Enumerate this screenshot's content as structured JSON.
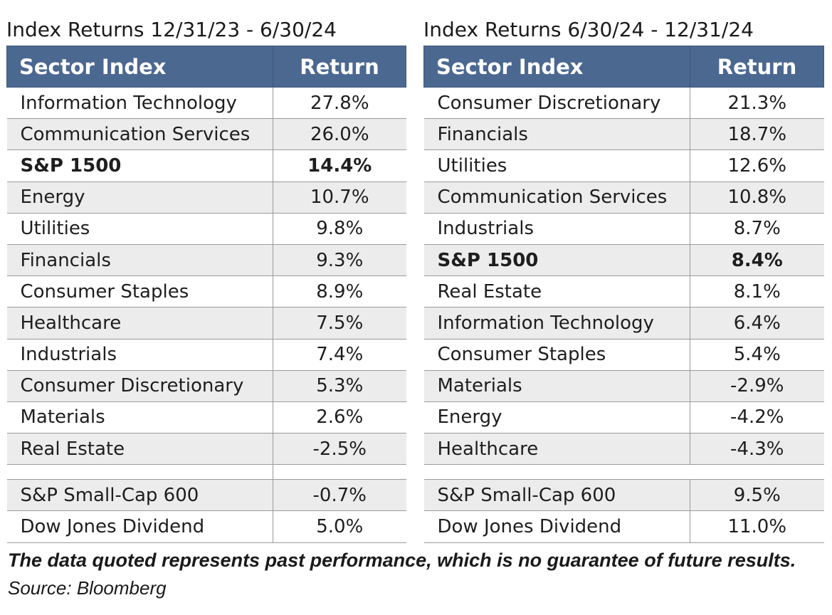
{
  "chart_data": [
    {
      "type": "table",
      "title": "Index Returns 12/31/23 - 6/30/24",
      "columns": [
        "Sector Index",
        "Return"
      ],
      "rows": [
        {
          "name": "Information Technology",
          "value": "27.8%",
          "bold": false
        },
        {
          "name": "Communication Services",
          "value": "26.0%",
          "bold": false
        },
        {
          "name": "S&P 1500",
          "value": "14.4%",
          "bold": true
        },
        {
          "name": "Energy",
          "value": "10.7%",
          "bold": false
        },
        {
          "name": "Utilities",
          "value": "9.8%",
          "bold": false
        },
        {
          "name": "Financials",
          "value": "9.3%",
          "bold": false
        },
        {
          "name": "Consumer Staples",
          "value": "8.9%",
          "bold": false
        },
        {
          "name": "Healthcare",
          "value": "7.5%",
          "bold": false
        },
        {
          "name": "Industrials",
          "value": "7.4%",
          "bold": false
        },
        {
          "name": "Consumer Discretionary",
          "value": "5.3%",
          "bold": false
        },
        {
          "name": "Materials",
          "value": "2.6%",
          "bold": false
        },
        {
          "name": "Real Estate",
          "value": "-2.5%",
          "bold": false
        }
      ],
      "extra_rows": [
        {
          "name": "S&P Small-Cap 600",
          "value": "-0.7%"
        },
        {
          "name": "Dow Jones Dividend",
          "value": "5.0%"
        }
      ]
    },
    {
      "type": "table",
      "title": "Index Returns 6/30/24 - 12/31/24",
      "columns": [
        "Sector Index",
        "Return"
      ],
      "rows": [
        {
          "name": "Consumer Discretionary",
          "value": "21.3%",
          "bold": false
        },
        {
          "name": "Financials",
          "value": "18.7%",
          "bold": false
        },
        {
          "name": "Utilities",
          "value": "12.6%",
          "bold": false
        },
        {
          "name": "Communication Services",
          "value": "10.8%",
          "bold": false
        },
        {
          "name": "Industrials",
          "value": "8.7%",
          "bold": false
        },
        {
          "name": "S&P 1500",
          "value": "8.4%",
          "bold": true
        },
        {
          "name": "Real Estate",
          "value": "8.1%",
          "bold": false
        },
        {
          "name": "Information Technology",
          "value": "6.4%",
          "bold": false
        },
        {
          "name": "Consumer Staples",
          "value": "5.4%",
          "bold": false
        },
        {
          "name": "Materials",
          "value": "-2.9%",
          "bold": false
        },
        {
          "name": "Energy",
          "value": "-4.2%",
          "bold": false
        },
        {
          "name": "Healthcare",
          "value": "-4.3%",
          "bold": false
        }
      ],
      "extra_rows": [
        {
          "name": "S&P Small-Cap 600",
          "value": "9.5%"
        },
        {
          "name": "Dow Jones Dividend",
          "value": "11.0%"
        }
      ]
    }
  ],
  "colors": {
    "header_bg": "#4b6891",
    "header_text": "#ffffff",
    "stripe_bg": "#ececec",
    "grid": "#9a9a9a"
  },
  "footnote": "The data quoted represents past performance, which is no guarantee of future results.",
  "source": "Source: Bloomberg"
}
